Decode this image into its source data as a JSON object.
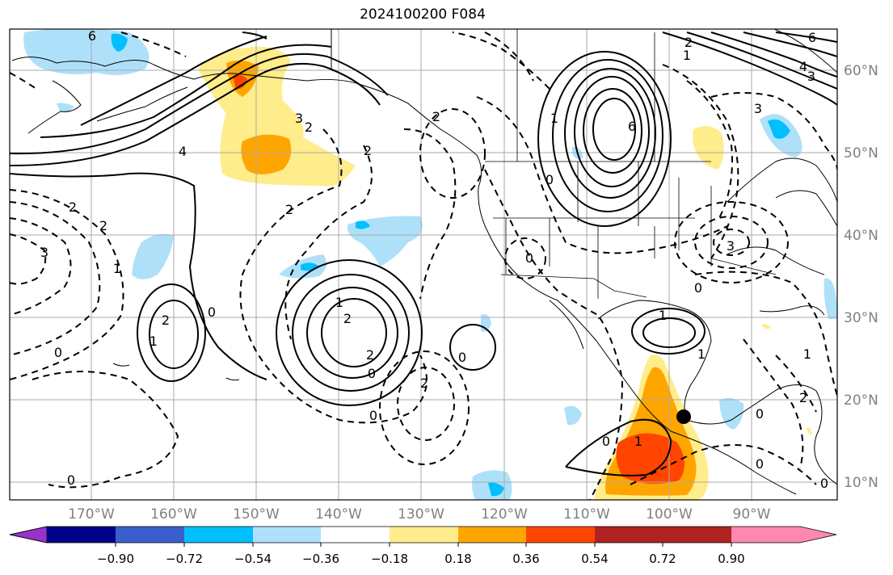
{
  "title": "2024100200 F084",
  "map": {
    "lat_labels": [
      "60°N",
      "50°N",
      "40°N",
      "30°N",
      "20°N",
      "10°N"
    ],
    "lon_labels": [
      "170°W",
      "160°W",
      "150°W",
      "140°W",
      "130°W",
      "120°W",
      "110°W",
      "100°W",
      "90°W"
    ],
    "contour_labels": [
      "6",
      "4",
      "3",
      "2",
      "2",
      "1",
      "2",
      "2",
      "0",
      "1",
      "2",
      "1",
      "2",
      "0",
      "0",
      "2",
      "0",
      "1",
      "0",
      "1",
      "0",
      "6",
      "6",
      "3",
      "3",
      "4",
      "2",
      "1",
      "3",
      "0",
      "1",
      "2",
      "0",
      "2",
      "0",
      "1",
      "0",
      "2",
      "3",
      "2",
      "1",
      "0",
      "0",
      "0"
    ],
    "marker": "storm-center"
  },
  "colorbar": {
    "tick_labels": [
      "−0.90",
      "−0.72",
      "−0.54",
      "−0.36",
      "−0.18",
      "0.18",
      "0.36",
      "0.54",
      "0.72",
      "0.90"
    ],
    "colors": [
      "#9932cc",
      "#00008b",
      "#3a5fcd",
      "#00bfff",
      "#aee0fa",
      "#ffffff",
      "#ffec8b",
      "#ffa500",
      "#ff4500",
      "#b22222",
      "#ff88b0"
    ]
  }
}
